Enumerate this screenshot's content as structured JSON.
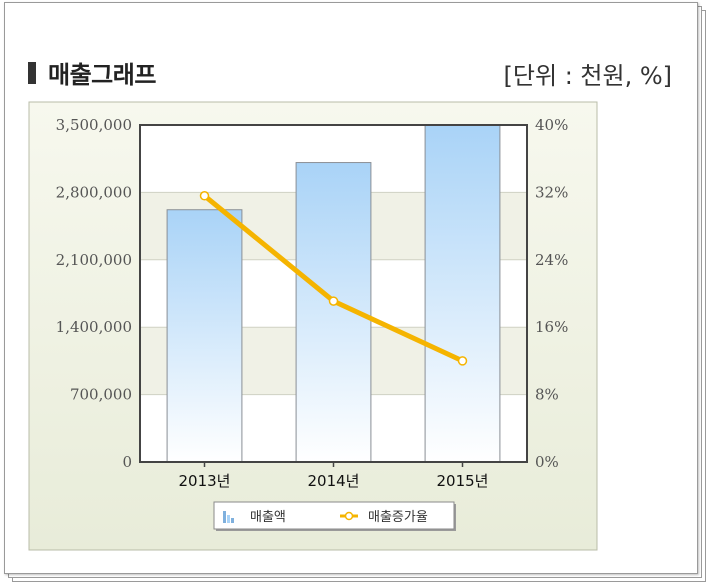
{
  "header": {
    "title": "매출그래프",
    "unit": "[단위 : 천원, %]"
  },
  "colors": {
    "bar_top": "#a9d3f7",
    "bar_bottom": "#ffffff",
    "line": "#f5b400",
    "panel": "#eef1e4"
  },
  "chart_data": {
    "type": "bar",
    "categories": [
      "2013년",
      "2014년",
      "2015년"
    ],
    "series": [
      {
        "name": "매출액",
        "type": "bar",
        "axis": "left",
        "values": [
          2620000,
          3110000,
          3500000
        ]
      },
      {
        "name": "매출증가율",
        "type": "line",
        "axis": "right",
        "values": [
          31.6,
          19.1,
          12.0
        ]
      }
    ],
    "y_left": {
      "min": 0,
      "max": 3500000,
      "ticks": [
        "0",
        "700,000",
        "1,400,000",
        "2,100,000",
        "2,800,000",
        "3,500,000"
      ]
    },
    "y_right": {
      "min": 0,
      "max": 40,
      "ticks": [
        "0%",
        "8%",
        "16%",
        "24%",
        "32%",
        "40%"
      ]
    },
    "legend": {
      "position": "bottom-center",
      "entries": [
        "매출액",
        "매출증가율"
      ]
    },
    "grid": true
  }
}
